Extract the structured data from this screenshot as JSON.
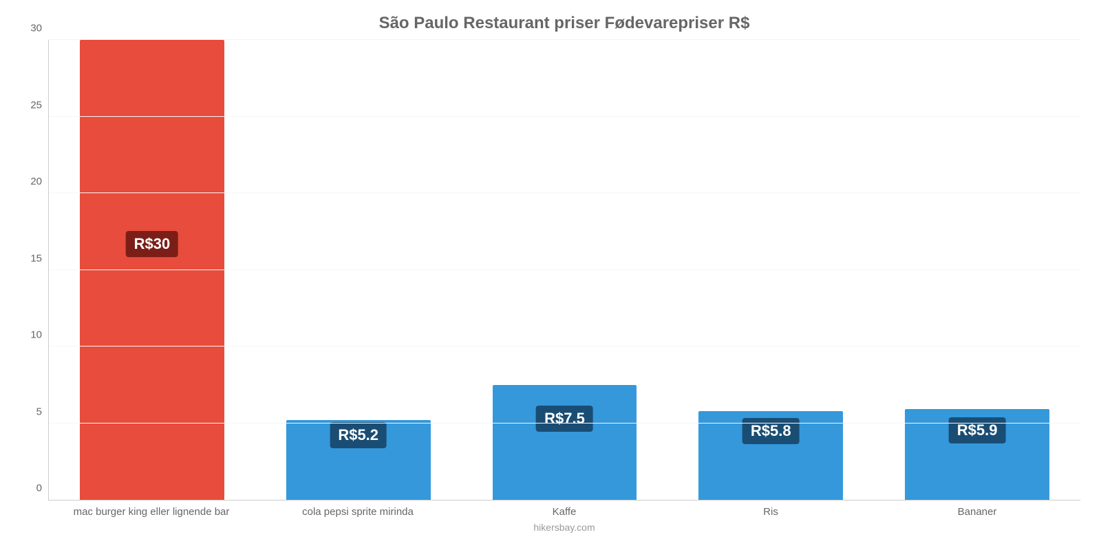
{
  "chart": {
    "type": "bar",
    "title": "São Paulo Restaurant priser Fødevarepriser R$",
    "title_fontsize": 24,
    "title_color": "#666666",
    "footer": "hikersbay.com",
    "footer_color": "#999999",
    "background_color": "#ffffff",
    "axis_color": "#cccccc",
    "grid_color": "#f5f5f5",
    "tick_label_color": "#666666",
    "x_label_color": "#666666",
    "ylim_min": 0,
    "ylim_max": 30,
    "ytick_step": 5,
    "yticks": [
      {
        "value": 0,
        "label": "0"
      },
      {
        "value": 5,
        "label": "5"
      },
      {
        "value": 10,
        "label": "10"
      },
      {
        "value": 15,
        "label": "15"
      },
      {
        "value": 20,
        "label": "20"
      },
      {
        "value": 25,
        "label": "25"
      },
      {
        "value": 30,
        "label": "30"
      }
    ],
    "bar_width_pct": 70,
    "value_label_fontsize": 22,
    "bars": [
      {
        "category": "mac burger king eller lignende bar",
        "value": 30,
        "display": "R$30",
        "fill": "#e74c3c",
        "label_bg": "#7b1e17",
        "label_y_value": 16.7
      },
      {
        "category": "cola pepsi sprite mirinda",
        "value": 5.2,
        "display": "R$5.2",
        "fill": "#3498db",
        "label_bg": "#1a4d73",
        "label_y_value": 4.2
      },
      {
        "category": "Kaffe",
        "value": 7.5,
        "display": "R$7.5",
        "fill": "#3498db",
        "label_bg": "#1a4d73",
        "label_y_value": 5.3
      },
      {
        "category": "Ris",
        "value": 5.8,
        "display": "R$5.8",
        "fill": "#3498db",
        "label_bg": "#1a4d73",
        "label_y_value": 4.5
      },
      {
        "category": "Bananer",
        "value": 5.9,
        "display": "R$5.9",
        "fill": "#3498db",
        "label_bg": "#1a4d73",
        "label_y_value": 4.55
      }
    ]
  }
}
